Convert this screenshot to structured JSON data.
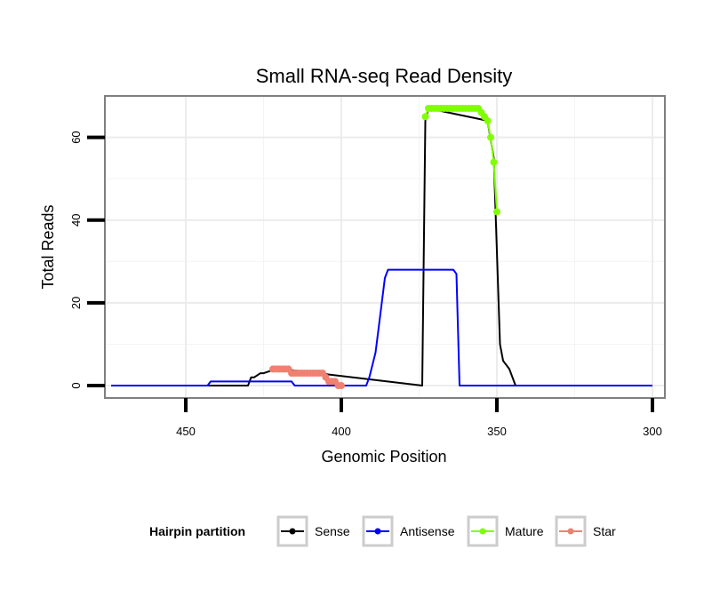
{
  "chart_data": {
    "type": "line",
    "title": "Small RNA-seq Read Density",
    "xlabel": "Genomic Position",
    "ylabel": "Total Reads",
    "xlim": [
      476,
      296
    ],
    "x_reversed": true,
    "ylim": [
      -3,
      70
    ],
    "x_ticks": [
      450,
      400,
      350,
      300
    ],
    "x_tick_labels": [
      "450",
      "400",
      "350",
      "300"
    ],
    "y_ticks": [
      0,
      20,
      40,
      60
    ],
    "y_tick_labels": [
      "0",
      "20",
      "40",
      "60"
    ],
    "grid": true,
    "legend": {
      "title": "Hairpin partition",
      "position": "bottom",
      "items": [
        "Sense",
        "Antisense",
        "Mature",
        "Star"
      ]
    },
    "series": [
      {
        "name": "Sense",
        "color": "#000000",
        "style": "line",
        "x": [
          474,
          430,
          429,
          428,
          426,
          425,
          421,
          419,
          374,
          373,
          372,
          353,
          351,
          349,
          348,
          347,
          346,
          345,
          344,
          300
        ],
        "y": [
          0,
          0,
          2,
          2,
          3,
          3,
          4,
          4,
          0,
          64,
          67,
          64,
          55,
          10,
          6,
          5,
          4,
          2,
          0,
          0
        ]
      },
      {
        "name": "Antisense",
        "color": "#0000ff",
        "style": "line",
        "x": [
          474,
          443,
          442,
          416,
          415,
          392,
          391,
          389,
          387,
          386,
          385,
          364,
          363,
          362,
          300
        ],
        "y": [
          0,
          0,
          1,
          1,
          0,
          0,
          2,
          8,
          20,
          26,
          28,
          28,
          27,
          0,
          0
        ]
      },
      {
        "name": "Mature",
        "color": "#80ff00",
        "style": "line+points",
        "x": [
          373,
          372,
          371,
          370,
          369,
          368,
          367,
          366,
          365,
          364,
          363,
          362,
          361,
          360,
          359,
          358,
          357,
          356,
          355,
          354,
          353,
          352,
          351,
          350
        ],
        "y": [
          65,
          67,
          67,
          67,
          67,
          67,
          67,
          67,
          67,
          67,
          67,
          67,
          67,
          67,
          67,
          67,
          67,
          67,
          66,
          65,
          64,
          60,
          54,
          42
        ]
      },
      {
        "name": "Star",
        "color": "#f08070",
        "style": "line+points",
        "x": [
          422,
          421,
          420,
          419,
          418,
          417,
          416,
          415,
          414,
          413,
          412,
          411,
          410,
          409,
          408,
          407,
          406,
          405,
          404,
          403,
          402,
          401,
          400
        ],
        "y": [
          4,
          4,
          4,
          4,
          4,
          4,
          3,
          3,
          3,
          3,
          3,
          3,
          3,
          3,
          3,
          3,
          3,
          2,
          1,
          1,
          1,
          0,
          0
        ]
      }
    ]
  }
}
